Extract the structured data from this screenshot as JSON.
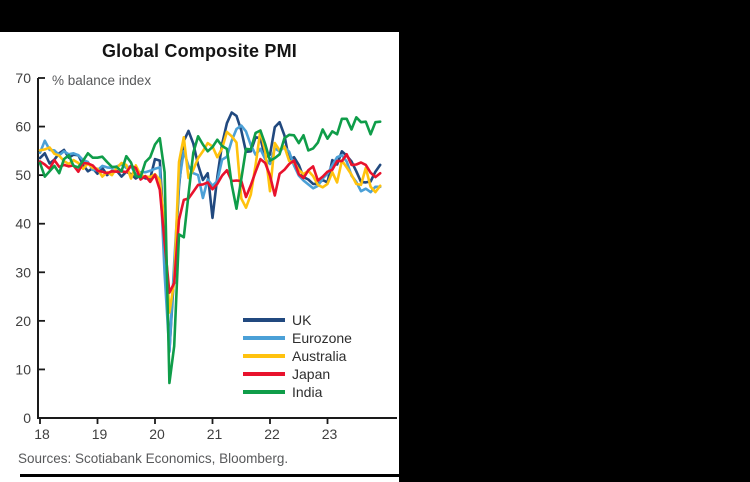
{
  "page": {
    "background_color": "#000000",
    "panel_color": "#ffffff"
  },
  "chart": {
    "title": "Global Composite PMI",
    "unit_label": "% balance index",
    "source_note": "Sources: Scotiabank Economics, Bloomberg.",
    "colors": {
      "axis": "#1a1a1a",
      "tick_label": "#3f3f3f",
      "muted_text": "#58595b",
      "uk": "#21497F",
      "eurozone": "#4BA0D7",
      "australia": "#FFC20E",
      "japan": "#E8122D",
      "india": "#0F9D49"
    }
  },
  "chart_data": {
    "type": "line",
    "title": "Global Composite PMI",
    "ylabel": "% balance index",
    "ylim": [
      0,
      70
    ],
    "y_ticks": [
      0,
      10,
      20,
      30,
      40,
      50,
      60,
      70
    ],
    "x_ticks": [
      "18",
      "19",
      "20",
      "21",
      "22",
      "23"
    ],
    "x_start": "2018-01",
    "x_end": "2023-12",
    "frequency": "monthly",
    "grid": false,
    "legend_position": "inside-lower-right",
    "series": [
      {
        "name": "UK",
        "color": "#21497F",
        "values": [
          53.5,
          54.5,
          52.4,
          53.2,
          54.5,
          55.2,
          53.6,
          54.2,
          54.1,
          52.1,
          50.8,
          51.4,
          50.3,
          51.5,
          50.0,
          50.9,
          50.9,
          49.7,
          50.7,
          50.2,
          49.3,
          50.0,
          49.3,
          49.3,
          53.3,
          53.0,
          36.0,
          13.8,
          30.0,
          47.7,
          57.0,
          59.1,
          56.5,
          52.1,
          49.0,
          50.4,
          41.2,
          49.6,
          56.4,
          60.7,
          62.9,
          62.2,
          59.2,
          54.8,
          54.9,
          57.8,
          57.6,
          53.6,
          54.2,
          59.9,
          60.9,
          58.2,
          53.1,
          53.7,
          52.1,
          49.6,
          49.1,
          48.2,
          48.2,
          49.0,
          48.5,
          53.1,
          52.2,
          54.9,
          54.0,
          52.8,
          50.8,
          48.6,
          48.5,
          48.7,
          50.7,
          52.1
        ]
      },
      {
        "name": "Eurozone",
        "color": "#4BA0D7",
        "values": [
          54.6,
          57.1,
          55.2,
          55.1,
          54.1,
          54.9,
          54.3,
          54.5,
          54.1,
          53.1,
          52.7,
          51.1,
          51.0,
          51.9,
          51.6,
          51.5,
          51.8,
          52.2,
          51.5,
          51.9,
          50.1,
          50.6,
          50.6,
          50.9,
          51.3,
          51.6,
          29.7,
          13.6,
          31.9,
          48.5,
          54.9,
          51.9,
          50.4,
          50.0,
          45.3,
          49.1,
          47.8,
          48.8,
          53.2,
          53.8,
          57.1,
          59.5,
          60.2,
          59.0,
          56.2,
          54.2,
          55.4,
          53.3,
          52.3,
          55.5,
          54.9,
          55.8,
          54.8,
          52.0,
          49.9,
          48.9,
          48.1,
          47.3,
          47.8,
          49.3,
          50.3,
          52.0,
          53.7,
          54.1,
          52.8,
          49.9,
          48.6,
          46.7,
          47.2,
          46.5,
          47.6,
          47.6
        ]
      },
      {
        "name": "Australia",
        "color": "#FFC20E",
        "values": [
          55.1,
          55.3,
          55.7,
          54.4,
          54.0,
          52.9,
          52.3,
          53.1,
          52.5,
          51.3,
          52.4,
          51.5,
          51.3,
          49.7,
          50.6,
          50.0,
          51.5,
          52.5,
          52.1,
          49.3,
          52.0,
          50.0,
          49.7,
          49.6,
          50.2,
          49.0,
          39.4,
          21.7,
          28.1,
          52.7,
          57.8,
          49.4,
          51.1,
          53.5,
          54.9,
          56.6,
          55.9,
          53.7,
          55.5,
          58.9,
          58.0,
          56.7,
          45.2,
          43.3,
          46.0,
          52.1,
          59.2,
          54.9,
          46.7,
          56.6,
          55.1,
          55.9,
          52.9,
          52.6,
          51.1,
          50.2,
          50.9,
          49.8,
          48.0,
          47.5,
          48.2,
          50.6,
          48.5,
          53.0,
          51.6,
          50.1,
          48.2,
          48.0,
          51.5,
          47.6,
          46.5,
          47.8
        ]
      },
      {
        "name": "Japan",
        "color": "#E8122D",
        "values": [
          52.8,
          52.2,
          51.3,
          53.1,
          51.7,
          52.1,
          51.8,
          52.0,
          50.7,
          52.5,
          52.4,
          52.0,
          50.9,
          50.7,
          50.4,
          50.8,
          50.7,
          50.8,
          50.6,
          51.9,
          51.5,
          49.1,
          49.8,
          48.6,
          50.1,
          47.0,
          36.2,
          25.8,
          27.8,
          40.8,
          44.9,
          45.2,
          46.6,
          48.0,
          48.1,
          48.5,
          47.1,
          48.2,
          49.9,
          51.0,
          48.8,
          48.9,
          48.8,
          45.5,
          47.9,
          50.7,
          53.3,
          52.5,
          49.9,
          45.8,
          50.3,
          51.1,
          52.3,
          53.0,
          50.2,
          49.4,
          51.0,
          51.8,
          48.9,
          49.7,
          50.7,
          51.1,
          52.9,
          52.9,
          54.3,
          52.1,
          52.2,
          52.6,
          52.1,
          50.5,
          49.6,
          50.4
        ]
      },
      {
        "name": "India",
        "color": "#0F9D49",
        "values": [
          52.5,
          49.7,
          50.8,
          51.9,
          50.4,
          53.3,
          54.1,
          51.9,
          51.6,
          53.0,
          54.5,
          53.6,
          53.6,
          53.8,
          52.7,
          51.7,
          51.7,
          50.8,
          53.9,
          52.6,
          49.8,
          49.6,
          52.7,
          53.7,
          56.3,
          57.6,
          50.6,
          7.2,
          14.8,
          37.8,
          37.2,
          46.0,
          54.6,
          58.0,
          56.3,
          54.9,
          55.8,
          57.3,
          56.0,
          55.4,
          48.1,
          43.1,
          49.2,
          55.4,
          55.3,
          58.7,
          59.2,
          56.4,
          53.0,
          53.5,
          54.3,
          57.6,
          58.3,
          58.2,
          56.6,
          58.2,
          55.1,
          55.5,
          56.7,
          59.4,
          57.5,
          59.0,
          58.4,
          61.6,
          61.6,
          59.4,
          61.9,
          60.9,
          61.0,
          58.4,
          60.9,
          61.0
        ]
      }
    ]
  }
}
